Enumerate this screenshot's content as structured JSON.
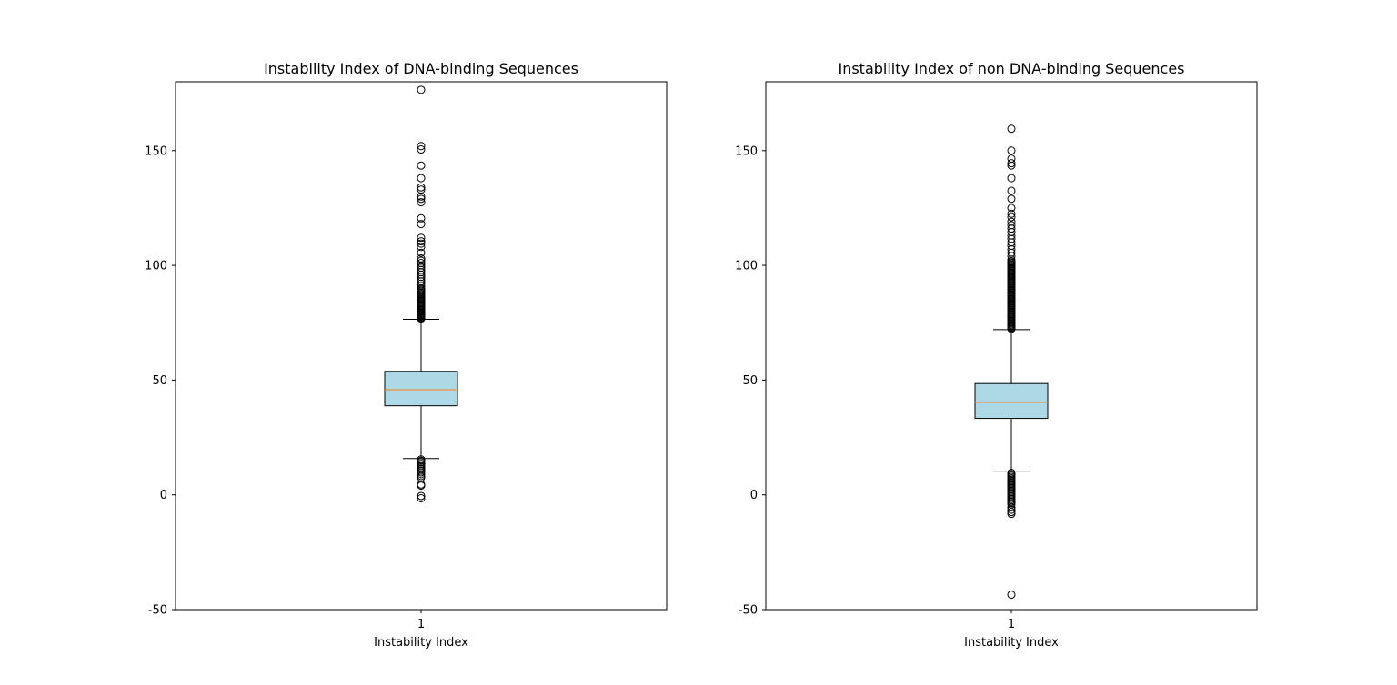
{
  "chart_data": [
    {
      "type": "box",
      "title": "Instability Index of DNA-binding Sequences",
      "xlabel": "Instability Index",
      "ylabel": "",
      "categories": [
        "1"
      ],
      "ylim": [
        -50,
        180
      ],
      "yticks": [
        "-50",
        "0",
        "50",
        "100",
        "150"
      ],
      "yticks_values": [
        -50,
        0,
        50,
        100,
        150
      ],
      "grid": false,
      "colors": {
        "box_fill": "#add8e6",
        "median": "#ff7f0e",
        "lines": "#000000"
      },
      "box": {
        "q1": 38.8,
        "median": 45.8,
        "q3": 53.8,
        "whisker_low": 15.8,
        "whisker_high": 76.5
      },
      "outliers_high": [
        76.8,
        77.2,
        77.6,
        78.0,
        78.4,
        78.8,
        79.2,
        79.6,
        80.0,
        80.5,
        81.0,
        81.5,
        82.0,
        82.5,
        83.0,
        83.5,
        84.0,
        84.5,
        85.0,
        85.5,
        86.0,
        86.5,
        87.0,
        87.5,
        88.0,
        88.5,
        89.0,
        89.5,
        90.0,
        91.0,
        92.0,
        93.0,
        94.0,
        95.0,
        96.0,
        97.0,
        98.0,
        99.0,
        100.0,
        101.0,
        102.0,
        103.0,
        105.5,
        108.0,
        109.5,
        110.5,
        112.0,
        118.0,
        120.5,
        127.5,
        129.0,
        130.0,
        133.0,
        134.0,
        138.0,
        143.5,
        150.5,
        152.0,
        176.5
      ],
      "outliers_low": [
        15.4,
        14.8,
        14.2,
        13.5,
        12.8,
        12.0,
        11.2,
        10.5,
        9.8,
        9.0,
        8.2,
        7.5,
        4.5,
        4.0,
        -0.5,
        -1.5
      ]
    },
    {
      "type": "box",
      "title": "Instability Index of non DNA-binding Sequences",
      "xlabel": "Instability Index",
      "ylabel": "",
      "categories": [
        "1"
      ],
      "ylim": [
        -50,
        180
      ],
      "yticks": [
        "-50",
        "0",
        "50",
        "100",
        "150"
      ],
      "yticks_values": [
        -50,
        0,
        50,
        100,
        150
      ],
      "grid": false,
      "colors": {
        "box_fill": "#add8e6",
        "median": "#ff7f0e",
        "lines": "#000000"
      },
      "box": {
        "q1": 33.3,
        "median": 40.3,
        "q3": 48.5,
        "whisker_low": 10.0,
        "whisker_high": 72.0
      },
      "outliers_high": [
        72.3,
        72.8,
        73.3,
        73.8,
        74.3,
        74.8,
        75.3,
        75.8,
        76.3,
        76.8,
        77.3,
        77.8,
        78.3,
        78.8,
        79.3,
        79.8,
        80.3,
        80.8,
        81.3,
        81.8,
        82.3,
        82.8,
        83.3,
        83.8,
        84.3,
        84.8,
        85.3,
        85.8,
        86.3,
        86.8,
        87.3,
        87.8,
        88.3,
        88.8,
        89.3,
        89.8,
        90.3,
        90.8,
        91.3,
        91.8,
        92.3,
        92.8,
        93.3,
        93.8,
        94.3,
        94.8,
        95.3,
        95.8,
        96.3,
        96.8,
        97.3,
        97.8,
        98.3,
        98.8,
        99.3,
        99.8,
        100.3,
        100.8,
        101.3,
        101.8,
        102.5,
        104.0,
        105.5,
        107.0,
        108.5,
        110.0,
        111.5,
        113.0,
        114.5,
        116.0,
        117.5,
        119.0,
        121.0,
        122.5,
        125.0,
        129.0,
        132.5,
        138.0,
        143.5,
        144.5,
        146.5,
        150.0,
        159.5
      ],
      "outliers_low": [
        9.6,
        9.0,
        8.4,
        7.8,
        7.2,
        6.6,
        6.0,
        5.4,
        4.8,
        4.2,
        3.6,
        3.0,
        2.4,
        1.8,
        1.2,
        0.6,
        0.0,
        -0.6,
        -1.2,
        -1.8,
        -2.4,
        -3.0,
        -3.6,
        -4.2,
        -5.5,
        -6.5,
        -7.5,
        -8.3,
        -43.5
      ]
    }
  ]
}
